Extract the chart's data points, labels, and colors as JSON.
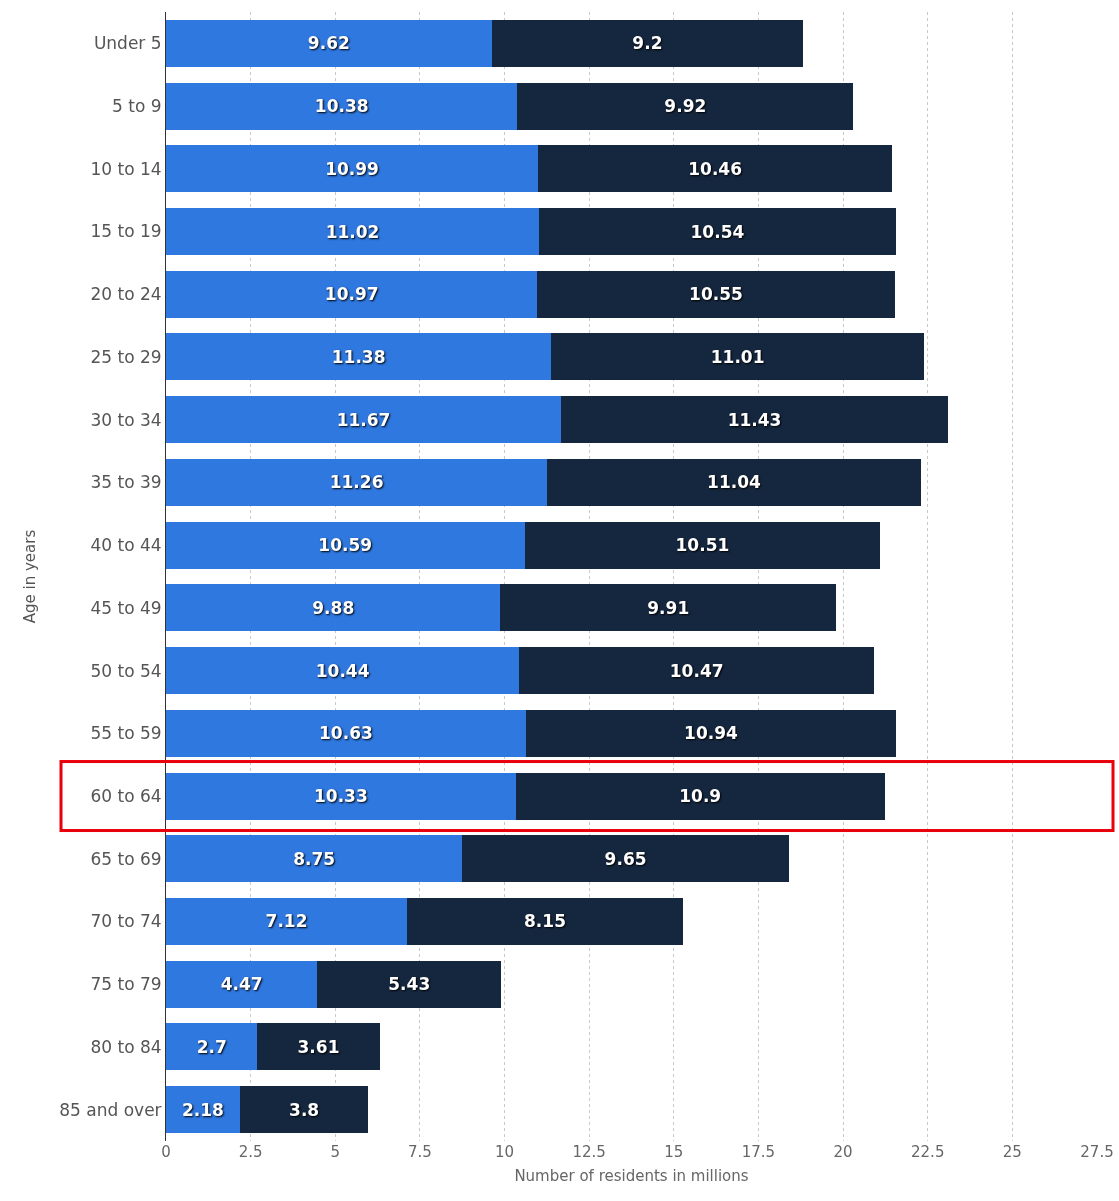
{
  "chart_data": {
    "type": "bar",
    "orientation": "horizontal",
    "stacked": true,
    "xlabel": "Number of residents in millions",
    "ylabel": "Age in years",
    "categories": [
      "Under 5",
      "5 to 9",
      "10 to 14",
      "15 to 19",
      "20 to 24",
      "25 to 29",
      "30 to 34",
      "35 to 39",
      "40 to 44",
      "45 to 49",
      "50 to 54",
      "55 to 59",
      "60 to 64",
      "65 to 69",
      "70 to 74",
      "75 to 79",
      "80 to 84",
      "85 and over"
    ],
    "series": [
      {
        "color": "#2f78e0",
        "values": [
          9.62,
          10.38,
          10.99,
          11.02,
          10.97,
          11.38,
          11.67,
          11.26,
          10.59,
          9.88,
          10.44,
          10.63,
          10.33,
          8.75,
          7.12,
          4.47,
          2.7,
          2.18
        ]
      },
      {
        "color": "#15273f",
        "values": [
          9.2,
          9.92,
          10.46,
          10.54,
          10.55,
          11.01,
          11.43,
          11.04,
          10.51,
          9.91,
          10.47,
          10.94,
          10.9,
          9.65,
          8.15,
          5.43,
          3.61,
          3.8
        ]
      }
    ],
    "xlim": [
      0,
      27.5
    ],
    "xticks": [
      0,
      2.5,
      5,
      7.5,
      10,
      12.5,
      15,
      17.5,
      20,
      22.5,
      25,
      27.5
    ],
    "grid": "x",
    "data_labels": true
  }
}
